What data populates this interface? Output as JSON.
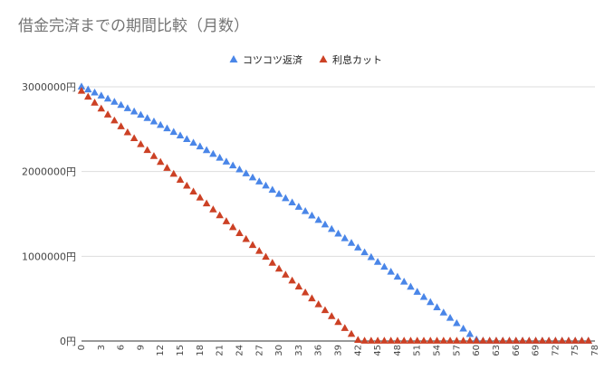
{
  "chart_data": {
    "type": "scatter",
    "title": "借金完済までの期間比較（月数）",
    "xlabel": "",
    "ylabel": "",
    "xlim": [
      0,
      78
    ],
    "ylim": [
      0,
      3000000
    ],
    "y_tick_values": [
      0,
      1000000,
      2000000,
      3000000
    ],
    "y_tick_labels": [
      "0円",
      "1000000円",
      "2000000円",
      "3000000円"
    ],
    "x_tick_values": [
      0,
      3,
      6,
      9,
      12,
      15,
      18,
      21,
      24,
      27,
      30,
      33,
      36,
      39,
      42,
      45,
      48,
      51,
      54,
      57,
      60,
      63,
      66,
      69,
      72,
      75,
      78
    ],
    "x_tick_labels": [
      "0",
      "3",
      "6",
      "9",
      "12",
      "15",
      "18",
      "21",
      "24",
      "27",
      "30",
      "33",
      "36",
      "39",
      "42",
      "45",
      "48",
      "51",
      "54",
      "57",
      "60",
      "63",
      "66",
      "69",
      "72",
      "75",
      "78"
    ],
    "grid": true,
    "legend_position": "top",
    "series": [
      {
        "name": "コツコツ返済",
        "color": "#4a86e8",
        "marker": "triangle",
        "x": [
          0,
          1,
          2,
          3,
          4,
          5,
          6,
          7,
          8,
          9,
          10,
          11,
          12,
          13,
          14,
          15,
          16,
          17,
          18,
          19,
          20,
          21,
          22,
          23,
          24,
          25,
          26,
          27,
          28,
          29,
          30,
          31,
          32,
          33,
          34,
          35,
          36,
          37,
          38,
          39,
          40,
          41,
          42,
          43,
          44,
          45,
          46,
          47,
          48,
          49,
          50,
          51,
          52,
          53,
          54,
          55,
          56,
          57,
          58,
          59,
          60,
          61,
          62,
          63,
          64,
          65,
          66,
          67,
          68,
          69,
          70,
          71,
          72,
          73,
          74,
          75,
          76,
          77
        ],
        "values": [
          3000000,
          2965000,
          2929500,
          2893500,
          2857000,
          2820000,
          2782500,
          2744500,
          2706000,
          2667000,
          2627500,
          2587500,
          2547000,
          2506000,
          2464500,
          2422500,
          2380000,
          2337000,
          2293500,
          2249500,
          2205000,
          2160000,
          2114500,
          2068500,
          2022000,
          1975000,
          1927500,
          1879500,
          1831000,
          1782000,
          1732500,
          1682500,
          1632000,
          1581000,
          1529500,
          1477500,
          1425000,
          1372000,
          1318500,
          1264500,
          1210000,
          1155000,
          1099500,
          1043500,
          987000,
          930000,
          872500,
          814500,
          756000,
          697000,
          637500,
          577500,
          517000,
          456000,
          394500,
          332500,
          270000,
          207000,
          143500,
          79500,
          15000,
          0,
          0,
          0,
          0,
          0,
          0,
          0,
          0,
          0,
          0,
          0,
          0,
          0,
          0,
          0,
          0,
          0
        ]
      },
      {
        "name": "利息カット",
        "color": "#cc4125",
        "marker": "triangle",
        "x": [
          0,
          1,
          2,
          3,
          4,
          5,
          6,
          7,
          8,
          9,
          10,
          11,
          12,
          13,
          14,
          15,
          16,
          17,
          18,
          19,
          20,
          21,
          22,
          23,
          24,
          25,
          26,
          27,
          28,
          29,
          30,
          31,
          32,
          33,
          34,
          35,
          36,
          37,
          38,
          39,
          40,
          41,
          42,
          43,
          44,
          45,
          46,
          47,
          48,
          49,
          50,
          51,
          52,
          53,
          54,
          55,
          56,
          57,
          58,
          59,
          60,
          61,
          62,
          63,
          64,
          65,
          66,
          67,
          68,
          69,
          70,
          71,
          72,
          73,
          74,
          75,
          76,
          77
        ],
        "values": [
          2950000,
          2880000,
          2810000,
          2740000,
          2670000,
          2600000,
          2530000,
          2460000,
          2390000,
          2320000,
          2250000,
          2180000,
          2110000,
          2040000,
          1970000,
          1900000,
          1830000,
          1760000,
          1690000,
          1620000,
          1550000,
          1480000,
          1410000,
          1340000,
          1270000,
          1200000,
          1130000,
          1060000,
          990000,
          920000,
          850000,
          780000,
          710000,
          640000,
          570000,
          500000,
          430000,
          360000,
          290000,
          220000,
          150000,
          80000,
          10000,
          0,
          0,
          0,
          0,
          0,
          0,
          0,
          0,
          0,
          0,
          0,
          0,
          0,
          0,
          0,
          0,
          0,
          0,
          0,
          0,
          0,
          0,
          0,
          0,
          0,
          0,
          0,
          0,
          0,
          0,
          0,
          0,
          0,
          0,
          0
        ]
      }
    ]
  }
}
